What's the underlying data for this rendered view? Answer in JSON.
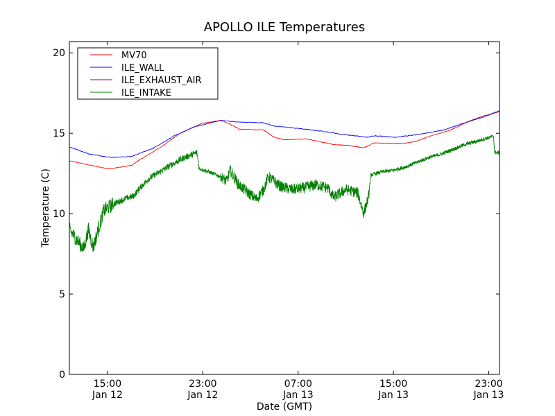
{
  "chart_data": {
    "type": "line",
    "title": "APOLLO ILE Temperatures",
    "xlabel": "Date (GMT)",
    "ylabel": "Temperature (C)",
    "x_units": "hours since Jan 12 00:00 GMT",
    "xlim": [
      11.8,
      47.9
    ],
    "ylim": [
      0,
      20.7
    ],
    "grid": false,
    "legend_position": "top-left",
    "x_ticks": [
      {
        "value": 15,
        "label1": "15:00",
        "label2": "Jan 12"
      },
      {
        "value": 23,
        "label1": "23:00",
        "label2": "Jan 12"
      },
      {
        "value": 31,
        "label1": "07:00",
        "label2": "Jan 13"
      },
      {
        "value": 39,
        "label1": "15:00",
        "label2": "Jan 13"
      },
      {
        "value": 47,
        "label1": "23:00",
        "label2": "Jan 13"
      }
    ],
    "y_ticks": [
      0,
      5,
      10,
      15,
      20
    ],
    "series": [
      {
        "name": "MV70",
        "color": "#ff0000",
        "x": [
          11.8,
          14.7,
          15.3,
          17,
          17.6,
          19.4,
          21.1,
          22.9,
          24.5,
          25.2,
          26.1,
          28.1,
          29,
          29.8,
          31.6,
          32.7,
          33.9,
          35.1,
          36.5,
          37.4,
          39.7,
          40.9,
          42,
          43.8,
          45.5,
          46.7,
          47.9
        ],
        "y": [
          13.28,
          12.84,
          12.8,
          13.0,
          13.3,
          14.1,
          15.0,
          15.6,
          15.8,
          15.6,
          15.25,
          15.2,
          14.75,
          14.6,
          14.65,
          14.5,
          14.3,
          14.25,
          14.1,
          14.4,
          14.35,
          14.5,
          14.8,
          15.2,
          15.8,
          16.1,
          16.35
        ]
      },
      {
        "name": "ILE_WALL",
        "color": "#0000ff",
        "x": [
          11.8,
          13.5,
          15.3,
          17,
          18.8,
          20.5,
          22.3,
          24.5,
          25.8,
          28.1,
          29,
          31,
          33.3,
          34.5,
          36.8,
          37.4,
          39.1,
          40.9,
          43.2,
          45,
          46.7,
          47.9
        ],
        "y": [
          14.15,
          13.7,
          13.5,
          13.55,
          14.05,
          14.8,
          15.4,
          15.8,
          15.7,
          15.65,
          15.45,
          15.3,
          15.1,
          14.95,
          14.75,
          14.85,
          14.75,
          14.9,
          15.2,
          15.65,
          16.05,
          16.4
        ]
      },
      {
        "name": "ILE_EXHAUST_AIR",
        "color": "#800080",
        "x": [],
        "y": []
      },
      {
        "name": "ILE_INTAKE",
        "color": "#008000",
        "x": [
          11.8,
          12.5,
          13.0,
          13.4,
          13.8,
          14.3,
          14.7,
          15.5,
          16.4,
          17.2,
          17.6,
          18.5,
          19.4,
          20.5,
          21.5,
          22.5,
          22.7,
          23.5,
          24.5,
          25.0,
          25.3,
          26.0,
          26.8,
          27.5,
          28.1,
          28.5,
          29.5,
          30.5,
          31.5,
          32.5,
          33.5,
          34.0,
          35.0,
          36.0,
          36.5,
          36.9,
          37.1,
          38.0,
          39.0,
          40.0,
          41.0,
          42.0,
          43.0,
          44.0,
          45.0,
          46.0,
          46.8,
          47.4,
          47.5,
          47.9
        ],
        "y": [
          9.0,
          8.3,
          7.8,
          9.0,
          7.9,
          9.2,
          10.2,
          10.6,
          10.9,
          11.1,
          11.5,
          12.2,
          12.6,
          13.1,
          13.5,
          13.8,
          12.8,
          12.6,
          12.3,
          12.0,
          12.7,
          11.8,
          11.3,
          10.9,
          11.5,
          12.3,
          11.7,
          11.5,
          11.6,
          11.8,
          11.6,
          11.0,
          11.5,
          11.3,
          10.0,
          11.0,
          12.4,
          12.6,
          12.7,
          12.9,
          13.2,
          13.5,
          13.7,
          14.0,
          14.3,
          14.5,
          14.7,
          14.8,
          13.8,
          13.8
        ]
      }
    ]
  }
}
